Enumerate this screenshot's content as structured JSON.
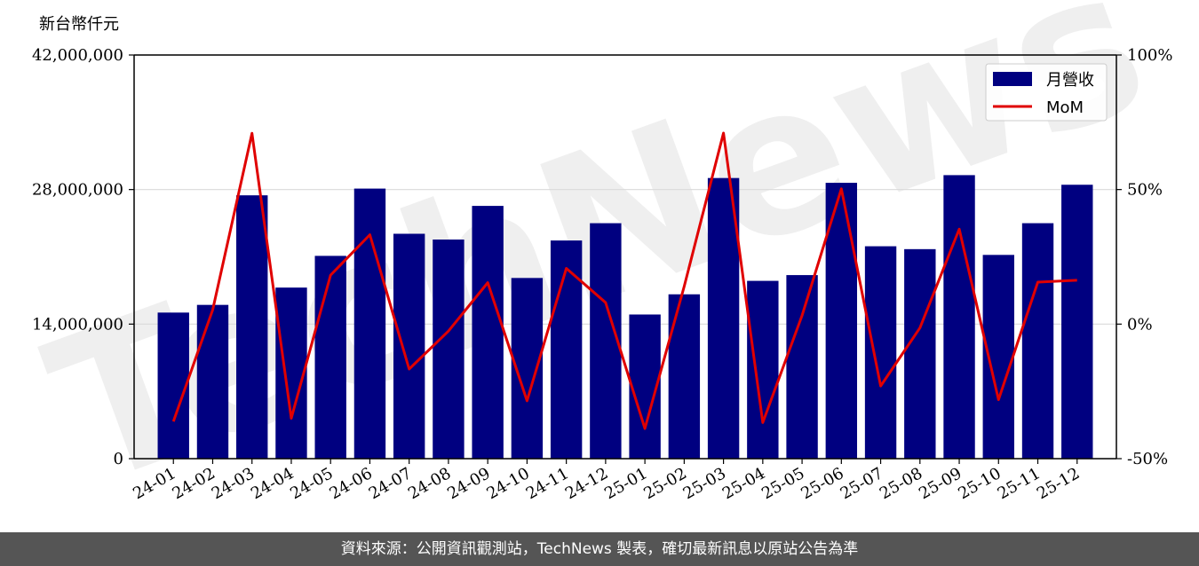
{
  "chart_data": {
    "type": "bar",
    "ylabel": "新台幣仟元",
    "categories": [
      "24-01",
      "24-02",
      "24-03",
      "24-04",
      "24-05",
      "24-06",
      "24-07",
      "24-08",
      "24-09",
      "24-10",
      "24-11",
      "24-12",
      "25-01",
      "25-02",
      "25-03",
      "25-04",
      "25-05",
      "25-06",
      "25-07",
      "25-08",
      "25-09",
      "25-10",
      "25-11",
      "25-12"
    ],
    "series": [
      {
        "name": "月營收",
        "type": "bar",
        "axis": "left",
        "color": "#000080",
        "values": [
          15200000,
          16000000,
          27400000,
          17800000,
          21100000,
          28100000,
          23400000,
          22800000,
          26300000,
          18800000,
          22700000,
          24500000,
          15000000,
          17100000,
          29200000,
          18500000,
          19100000,
          28700000,
          22100000,
          21800000,
          29500000,
          21200000,
          24500000,
          28500000
        ]
      },
      {
        "name": "MoM",
        "type": "line",
        "axis": "right",
        "color": "#e00000",
        "values": [
          -36.2,
          5.3,
          70.9,
          -35.0,
          18.2,
          33.2,
          -16.7,
          -2.6,
          15.4,
          -28.5,
          20.7,
          8.0,
          -38.8,
          14.0,
          71.0,
          -36.6,
          3.2,
          50.3,
          -23.0,
          -1.4,
          35.3,
          -28.1,
          15.6,
          16.3
        ]
      }
    ],
    "ylim_left": [
      0,
      42000000
    ],
    "ylim_right": [
      -50,
      100
    ],
    "yticks_left": [
      "0",
      "14,000,000",
      "28,000,000",
      "42,000,000"
    ],
    "yticks_right": [
      "-50%",
      "0%",
      "50%",
      "100%"
    ],
    "grid": "horizontal",
    "legend": "top-right",
    "watermark": "TechNews"
  },
  "footer": {
    "source": "資料來源：公開資訊觀測站，TechNews 製表，確切最新訊息以原站公告為準"
  }
}
